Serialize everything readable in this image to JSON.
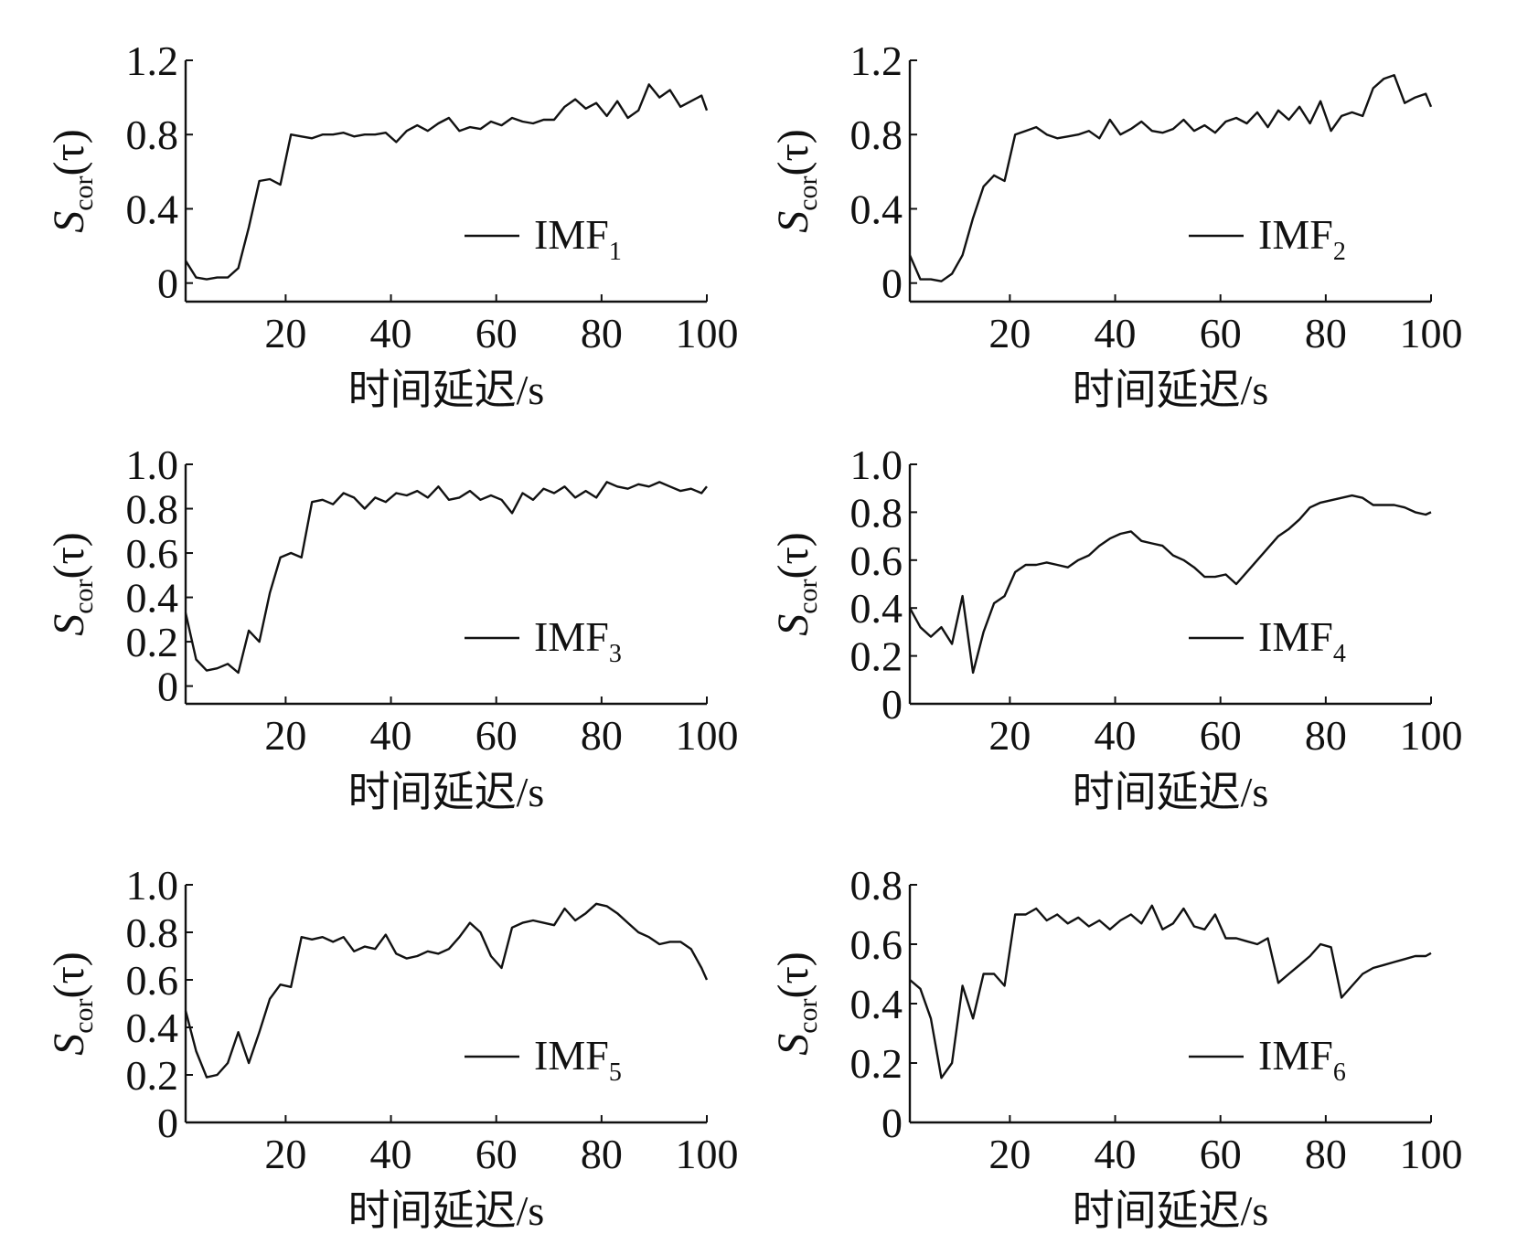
{
  "chart_data": [
    {
      "type": "line",
      "ylabel": [
        "S",
        "cor",
        "(τ)"
      ],
      "xlabel": "时间延迟/s",
      "xlim": [
        1,
        100
      ],
      "xticks": [
        20,
        40,
        60,
        80,
        100
      ],
      "ylim": [
        -0.1,
        1.2
      ],
      "yticks": [
        0,
        0.4,
        0.8,
        1.2
      ],
      "legend": "lower right",
      "x": [
        1,
        3,
        5,
        7,
        9,
        11,
        13,
        15,
        17,
        19,
        21,
        23,
        25,
        27,
        29,
        31,
        33,
        35,
        37,
        39,
        41,
        43,
        45,
        47,
        49,
        51,
        53,
        55,
        57,
        59,
        61,
        63,
        65,
        67,
        69,
        71,
        73,
        75,
        77,
        79,
        81,
        83,
        85,
        87,
        89,
        91,
        93,
        95,
        97,
        99,
        100
      ],
      "series": [
        {
          "name": "IMF",
          "subscript": "1",
          "color": "#111111",
          "values": [
            0.12,
            0.03,
            0.02,
            0.03,
            0.03,
            0.08,
            0.3,
            0.55,
            0.56,
            0.53,
            0.8,
            0.79,
            0.78,
            0.8,
            0.8,
            0.81,
            0.79,
            0.8,
            0.8,
            0.81,
            0.76,
            0.82,
            0.85,
            0.82,
            0.86,
            0.89,
            0.82,
            0.84,
            0.83,
            0.87,
            0.85,
            0.89,
            0.87,
            0.86,
            0.88,
            0.88,
            0.95,
            0.99,
            0.94,
            0.97,
            0.9,
            0.98,
            0.89,
            0.93,
            1.07,
            1.0,
            1.04,
            0.95,
            0.98,
            1.01,
            0.93
          ]
        }
      ]
    },
    {
      "type": "line",
      "ylabel": [
        "S",
        "cor",
        "(τ)"
      ],
      "xlabel": "时间延迟/s",
      "xlim": [
        1,
        100
      ],
      "xticks": [
        20,
        40,
        60,
        80,
        100
      ],
      "ylim": [
        -0.1,
        1.2
      ],
      "yticks": [
        0,
        0.4,
        0.8,
        1.2
      ],
      "legend": "lower right",
      "x": [
        1,
        3,
        5,
        7,
        9,
        11,
        13,
        15,
        17,
        19,
        21,
        23,
        25,
        27,
        29,
        31,
        33,
        35,
        37,
        39,
        41,
        43,
        45,
        47,
        49,
        51,
        53,
        55,
        57,
        59,
        61,
        63,
        65,
        67,
        69,
        71,
        73,
        75,
        77,
        79,
        81,
        83,
        85,
        87,
        89,
        91,
        93,
        95,
        97,
        99,
        100
      ],
      "series": [
        {
          "name": "IMF",
          "subscript": "2",
          "color": "#111111",
          "values": [
            0.15,
            0.02,
            0.02,
            0.01,
            0.05,
            0.15,
            0.35,
            0.52,
            0.58,
            0.55,
            0.8,
            0.82,
            0.84,
            0.8,
            0.78,
            0.79,
            0.8,
            0.82,
            0.78,
            0.88,
            0.8,
            0.83,
            0.87,
            0.82,
            0.81,
            0.83,
            0.88,
            0.82,
            0.85,
            0.81,
            0.87,
            0.89,
            0.86,
            0.92,
            0.84,
            0.93,
            0.88,
            0.95,
            0.86,
            0.98,
            0.82,
            0.9,
            0.92,
            0.9,
            1.05,
            1.1,
            1.12,
            0.97,
            1.0,
            1.02,
            0.95
          ]
        }
      ]
    },
    {
      "type": "line",
      "ylabel": [
        "S",
        "cor",
        "(τ)"
      ],
      "xlabel": "时间延迟/s",
      "xlim": [
        1,
        100
      ],
      "xticks": [
        20,
        40,
        60,
        80,
        100
      ],
      "ylim": [
        -0.08,
        1.0
      ],
      "yticks": [
        0,
        0.2,
        0.4,
        0.6,
        0.8,
        {
          "value": 1,
          "label": "1.0"
        }
      ],
      "legend": "lower right",
      "x": [
        1,
        3,
        5,
        7,
        9,
        11,
        13,
        15,
        17,
        19,
        21,
        23,
        25,
        27,
        29,
        31,
        33,
        35,
        37,
        39,
        41,
        43,
        45,
        47,
        49,
        51,
        53,
        55,
        57,
        59,
        61,
        63,
        65,
        67,
        69,
        71,
        73,
        75,
        77,
        79,
        81,
        83,
        85,
        87,
        89,
        91,
        93,
        95,
        97,
        99,
        100
      ],
      "series": [
        {
          "name": "IMF",
          "subscript": "3",
          "color": "#111111",
          "values": [
            0.33,
            0.12,
            0.07,
            0.08,
            0.1,
            0.06,
            0.25,
            0.2,
            0.42,
            0.58,
            0.6,
            0.58,
            0.83,
            0.84,
            0.82,
            0.87,
            0.85,
            0.8,
            0.85,
            0.83,
            0.87,
            0.86,
            0.88,
            0.85,
            0.9,
            0.84,
            0.85,
            0.88,
            0.84,
            0.86,
            0.84,
            0.78,
            0.87,
            0.84,
            0.89,
            0.87,
            0.9,
            0.85,
            0.88,
            0.85,
            0.92,
            0.9,
            0.89,
            0.91,
            0.9,
            0.92,
            0.9,
            0.88,
            0.89,
            0.87,
            0.9
          ]
        }
      ]
    },
    {
      "type": "line",
      "ylabel": [
        "S",
        "cor",
        "(τ)"
      ],
      "xlabel": "时间延迟/s",
      "xlim": [
        1,
        100
      ],
      "xticks": [
        20,
        40,
        60,
        80,
        100
      ],
      "ylim": [
        0,
        1.0
      ],
      "yticks": [
        0,
        0.2,
        0.4,
        0.6,
        0.8,
        {
          "value": 1,
          "label": "1.0"
        }
      ],
      "legend": "lower right",
      "x": [
        1,
        3,
        5,
        7,
        9,
        11,
        13,
        15,
        17,
        19,
        21,
        23,
        25,
        27,
        29,
        31,
        33,
        35,
        37,
        39,
        41,
        43,
        45,
        47,
        49,
        51,
        53,
        55,
        57,
        59,
        61,
        63,
        65,
        67,
        69,
        71,
        73,
        75,
        77,
        79,
        81,
        83,
        85,
        87,
        89,
        91,
        93,
        95,
        97,
        99,
        100
      ],
      "series": [
        {
          "name": "IMF",
          "subscript": "4",
          "color": "#111111",
          "values": [
            0.4,
            0.32,
            0.28,
            0.32,
            0.25,
            0.45,
            0.13,
            0.3,
            0.42,
            0.45,
            0.55,
            0.58,
            0.58,
            0.59,
            0.58,
            0.57,
            0.6,
            0.62,
            0.66,
            0.69,
            0.71,
            0.72,
            0.68,
            0.67,
            0.66,
            0.62,
            0.6,
            0.57,
            0.53,
            0.53,
            0.54,
            0.5,
            0.55,
            0.6,
            0.65,
            0.7,
            0.73,
            0.77,
            0.82,
            0.84,
            0.85,
            0.86,
            0.87,
            0.86,
            0.83,
            0.83,
            0.83,
            0.82,
            0.8,
            0.79,
            0.8
          ]
        }
      ]
    },
    {
      "type": "line",
      "ylabel": [
        "S",
        "cor",
        "(τ)"
      ],
      "xlabel": "时间延迟/s",
      "xlim": [
        1,
        100
      ],
      "xticks": [
        20,
        40,
        60,
        80,
        100
      ],
      "ylim": [
        0,
        1.0
      ],
      "yticks": [
        0,
        0.2,
        0.4,
        0.6,
        0.8,
        {
          "value": 1,
          "label": "1.0"
        }
      ],
      "legend": "lower right",
      "x": [
        1,
        3,
        5,
        7,
        9,
        11,
        13,
        15,
        17,
        19,
        21,
        23,
        25,
        27,
        29,
        31,
        33,
        35,
        37,
        39,
        41,
        43,
        45,
        47,
        49,
        51,
        53,
        55,
        57,
        59,
        61,
        63,
        65,
        67,
        69,
        71,
        73,
        75,
        77,
        79,
        81,
        83,
        85,
        87,
        89,
        91,
        93,
        95,
        97,
        99,
        100
      ],
      "series": [
        {
          "name": "IMF",
          "subscript": "5",
          "color": "#111111",
          "values": [
            0.47,
            0.3,
            0.19,
            0.2,
            0.25,
            0.38,
            0.25,
            0.38,
            0.52,
            0.58,
            0.57,
            0.78,
            0.77,
            0.78,
            0.76,
            0.78,
            0.72,
            0.74,
            0.73,
            0.79,
            0.71,
            0.69,
            0.7,
            0.72,
            0.71,
            0.73,
            0.78,
            0.84,
            0.8,
            0.7,
            0.65,
            0.82,
            0.84,
            0.85,
            0.84,
            0.83,
            0.9,
            0.85,
            0.88,
            0.92,
            0.91,
            0.88,
            0.84,
            0.8,
            0.78,
            0.75,
            0.76,
            0.76,
            0.73,
            0.65,
            0.6
          ]
        }
      ]
    },
    {
      "type": "line",
      "ylabel": [
        "S",
        "cor",
        "(τ)"
      ],
      "xlabel": "时间延迟/s",
      "xlim": [
        1,
        100
      ],
      "xticks": [
        20,
        40,
        60,
        80,
        100
      ],
      "ylim": [
        0,
        0.8
      ],
      "yticks": [
        0,
        0.2,
        0.4,
        0.6,
        0.8
      ],
      "legend": "lower right",
      "x": [
        1,
        3,
        5,
        7,
        9,
        11,
        13,
        15,
        17,
        19,
        21,
        23,
        25,
        27,
        29,
        31,
        33,
        35,
        37,
        39,
        41,
        43,
        45,
        47,
        49,
        51,
        53,
        55,
        57,
        59,
        61,
        63,
        65,
        67,
        69,
        71,
        73,
        75,
        77,
        79,
        81,
        83,
        85,
        87,
        89,
        91,
        93,
        95,
        97,
        99,
        100
      ],
      "series": [
        {
          "name": "IMF",
          "subscript": "6",
          "color": "#111111",
          "values": [
            0.48,
            0.45,
            0.35,
            0.15,
            0.2,
            0.46,
            0.35,
            0.5,
            0.5,
            0.46,
            0.7,
            0.7,
            0.72,
            0.68,
            0.7,
            0.67,
            0.69,
            0.66,
            0.68,
            0.65,
            0.68,
            0.7,
            0.67,
            0.73,
            0.65,
            0.67,
            0.72,
            0.66,
            0.65,
            0.7,
            0.62,
            0.62,
            0.61,
            0.6,
            0.62,
            0.47,
            0.5,
            0.53,
            0.56,
            0.6,
            0.59,
            0.42,
            0.46,
            0.5,
            0.52,
            0.53,
            0.54,
            0.55,
            0.56,
            0.56,
            0.57
          ]
        }
      ]
    }
  ]
}
